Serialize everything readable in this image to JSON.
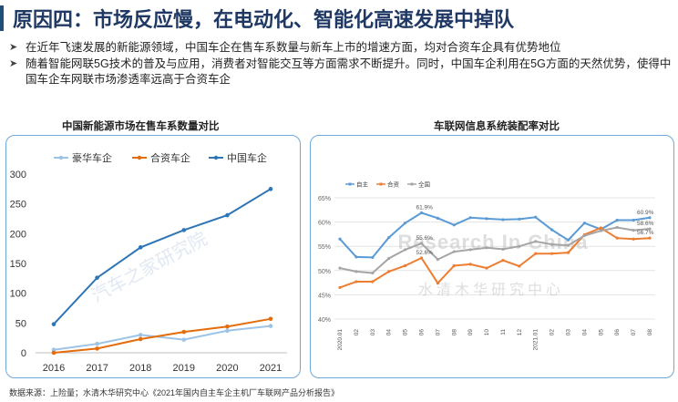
{
  "header": {
    "title": "原因四：市场反应慢，在电动化、智能化高速发展中掉队"
  },
  "bullets": [
    "在近年飞速发展的新能源领域，中国车企在售车系数量与新车上市的增速方面，均对合资车企具有优势地位",
    "随着智能网联5G技术的普及与应用，消费者对智能交互等方面需求不断提升。同时，中国车企利用在5G方面的天然优势，使得中国车企车网联市场渗透率远高于合资车企"
  ],
  "icons": {
    "bullet": "arrow-bullet-icon"
  },
  "colors": {
    "title": "#1f3864",
    "panel_border": "#6fa8dc"
  },
  "chart_left": {
    "title": "中国新能源市场在售车系数量对比",
    "watermark": "汽车之家研究院",
    "chart_data": {
      "type": "line",
      "categories": [
        "2016",
        "2017",
        "2018",
        "2019",
        "2020",
        "2021"
      ],
      "ylim": [
        0,
        300
      ],
      "yticks": [
        0,
        50,
        100,
        150,
        200,
        250,
        300
      ],
      "grid": false,
      "legend": "top",
      "series": [
        {
          "name": "豪华车企",
          "color": "#9dc3e6",
          "values": [
            5,
            15,
            30,
            22,
            37,
            45
          ]
        },
        {
          "name": "合资车企",
          "color": "#e46c0a",
          "values": [
            0,
            7,
            23,
            35,
            44,
            57
          ]
        },
        {
          "name": "中国车企",
          "color": "#2e75b6",
          "values": [
            48,
            126,
            177,
            206,
            231,
            275
          ]
        }
      ]
    }
  },
  "chart_right": {
    "title": "车联网信息系统装配率对比",
    "watermark_top": "Research In China",
    "watermark_bottom": "水清木华研究中心",
    "chart_data": {
      "type": "line",
      "categories": [
        "2020.01",
        "02",
        "03",
        "04",
        "05",
        "06",
        "07",
        "08",
        "09",
        "10",
        "11",
        "12",
        "2021.01",
        "02",
        "03",
        "04",
        "05",
        "06",
        "07",
        "08"
      ],
      "ylim": [
        40,
        65
      ],
      "yticks": [
        "40%",
        "45%",
        "50%",
        "55%",
        "60%",
        "65%"
      ],
      "ytick_values": [
        40,
        45,
        50,
        55,
        60,
        65
      ],
      "grid": true,
      "legend": "top-left",
      "series": [
        {
          "name": "自主",
          "color": "#5b9bd5",
          "values": [
            56.5,
            52.8,
            52.7,
            56.8,
            59.8,
            61.9,
            60.8,
            59.4,
            60.9,
            60.7,
            60.5,
            60.6,
            61.0,
            58.4,
            56.3,
            59.8,
            58.5,
            60.4,
            60.4,
            60.9
          ]
        },
        {
          "name": "合资",
          "color": "#ed7d31",
          "values": [
            46.5,
            47.7,
            47.7,
            49.8,
            51.0,
            52.6,
            47.4,
            51.0,
            51.3,
            50.5,
            52.1,
            50.9,
            53.5,
            53.5,
            53.7,
            57.4,
            58.8,
            56.7,
            56.5,
            56.7
          ]
        },
        {
          "name": "全国",
          "color": "#a5a5a5",
          "values": [
            50.5,
            49.8,
            49.5,
            52.5,
            54.3,
            55.6,
            52.3,
            53.9,
            54.3,
            54.7,
            54.4,
            55.0,
            56.0,
            55.4,
            55.2,
            57.2,
            58.2,
            58.9,
            58.3,
            58.6
          ]
        }
      ],
      "data_labels": [
        {
          "series": 0,
          "index": 5,
          "text": "61.9%"
        },
        {
          "series": 2,
          "index": 5,
          "text": "55.6%"
        },
        {
          "series": 1,
          "index": 5,
          "text": "52.6%"
        },
        {
          "series": 0,
          "index": 19,
          "text": "60.9%"
        },
        {
          "series": 2,
          "index": 19,
          "text": "58.6%"
        },
        {
          "series": 1,
          "index": 19,
          "text": "56.7%"
        }
      ]
    }
  },
  "footer": {
    "source": "数据来源：上险量；水清木华研究中心《2021年国内自主车企主机厂车联网产品分析报告》"
  }
}
